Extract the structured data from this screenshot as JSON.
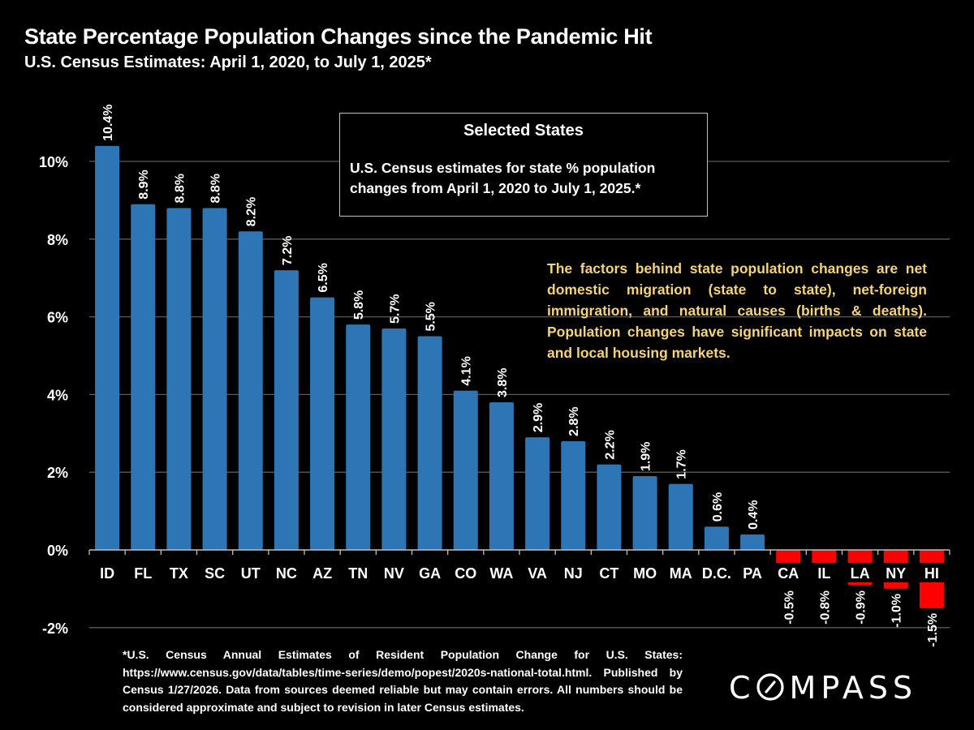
{
  "header": {
    "title": "State Percentage Population Changes since the Pandemic Hit",
    "subtitle": "U.S. Census Estimates: April 1, 2020, to July 1, 2025*"
  },
  "info_box": {
    "title": "Selected States",
    "body": "U.S. Census estimates for state % population changes from April 1, 2020 to July 1, 2025.*"
  },
  "annotation": {
    "text": "The factors behind state population changes are net domestic migration (state to state), net-foreign immigration, and natural causes (births & deaths). Population changes have significant impacts on state and local housing markets.",
    "color": "#f4d37c"
  },
  "footnote": {
    "text": "*U.S. Census Annual Estimates of Resident Population Change for U.S. States: https://www.census.gov/data/tables/time-series/demo/popest/2020s-national-total.html. Published by Census 1/27/2026. Data from sources deemed reliable but may contain errors. All numbers should be considered approximate and subject to revision in later Census estimates."
  },
  "brand": {
    "logo_text": "COMPASS",
    "logo_icon": "compass-o-slash-icon"
  },
  "colors": {
    "positive": "#2e75b6",
    "negative": "#ff0000",
    "gridline": "#595959",
    "axis": "#bfbfbf",
    "background": "#000000"
  },
  "chart_data": {
    "type": "bar",
    "title": "State Percentage Population Changes since the Pandemic Hit",
    "subtitle": "U.S. Census Estimates: April 1, 2020, to July 1, 2025*",
    "xlabel": "",
    "ylabel": "",
    "categories": [
      "ID",
      "FL",
      "TX",
      "SC",
      "UT",
      "NC",
      "AZ",
      "TN",
      "NV",
      "GA",
      "CO",
      "WA",
      "VA",
      "NJ",
      "CT",
      "MO",
      "MA",
      "D.C.",
      "PA",
      "CA",
      "IL",
      "LA",
      "NY",
      "HI"
    ],
    "values": [
      10.4,
      8.9,
      8.8,
      8.8,
      8.2,
      7.2,
      6.5,
      5.8,
      5.7,
      5.5,
      4.1,
      3.8,
      2.9,
      2.8,
      2.2,
      1.9,
      1.7,
      0.6,
      0.4,
      -0.5,
      -0.8,
      -0.9,
      -1.0,
      -1.5
    ],
    "data_labels": [
      "10.4%",
      "8.9%",
      "8.8%",
      "8.8%",
      "8.2%",
      "7.2%",
      "6.5%",
      "5.8%",
      "5.7%",
      "5.5%",
      "4.1%",
      "3.8%",
      "2.9%",
      "2.8%",
      "2.2%",
      "1.9%",
      "1.7%",
      "0.6%",
      "0.4%",
      "-0.5%",
      "-0.8%",
      "-0.9%",
      "-1.0%",
      "-1.5%"
    ],
    "ylim": [
      -2,
      10.8
    ],
    "yticks": [
      -2,
      0,
      2,
      4,
      6,
      8,
      10
    ],
    "ytick_labels": [
      "-2%",
      "0%",
      "2%",
      "4%",
      "6%",
      "8%",
      "10%"
    ],
    "grid": true,
    "legend": "none",
    "units": "percent"
  }
}
